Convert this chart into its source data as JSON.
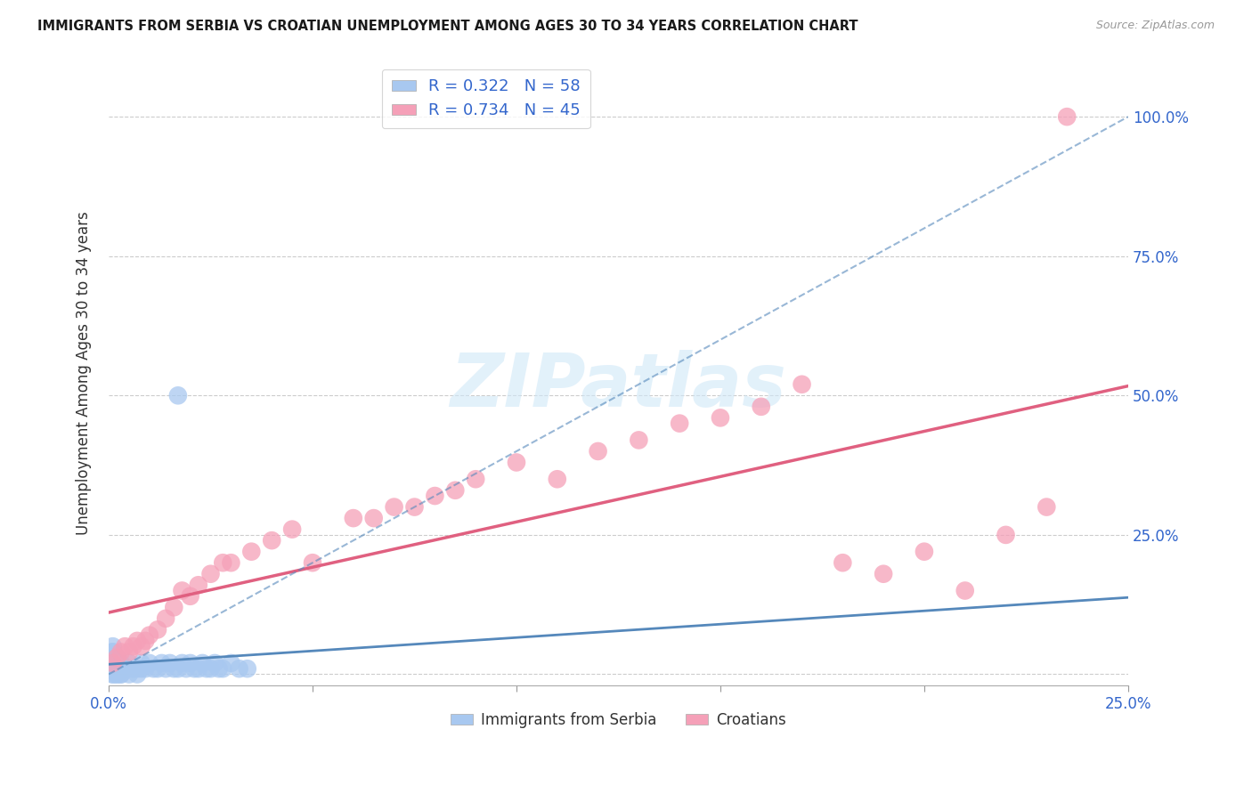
{
  "title": "IMMIGRANTS FROM SERBIA VS CROATIAN UNEMPLOYMENT AMONG AGES 30 TO 34 YEARS CORRELATION CHART",
  "source": "Source: ZipAtlas.com",
  "ylabel": "Unemployment Among Ages 30 to 34 years",
  "xlim": [
    0.0,
    0.25
  ],
  "ylim": [
    -0.02,
    1.1
  ],
  "xticks": [
    0.0,
    0.05,
    0.1,
    0.15,
    0.2,
    0.25
  ],
  "xtick_labels": [
    "0.0%",
    "",
    "",
    "",
    "",
    "25.0%"
  ],
  "yticks": [
    0.0,
    0.25,
    0.5,
    0.75,
    1.0
  ],
  "ytick_labels_right": [
    "",
    "25.0%",
    "50.0%",
    "75.0%",
    "100.0%"
  ],
  "series1_name": "Immigrants from Serbia",
  "series1_R": 0.322,
  "series1_N": 58,
  "series1_color": "#a8c8f0",
  "series1_line_color": "#5588bb",
  "series2_name": "Croatians",
  "series2_R": 0.734,
  "series2_N": 45,
  "series2_color": "#f5a0b8",
  "series2_line_color": "#e06080",
  "watermark": "ZIPatlas",
  "background_color": "#ffffff",
  "grid_color": "#cccccc",
  "serbia_x": [
    0.001,
    0.002,
    0.003,
    0.004,
    0.005,
    0.006,
    0.007,
    0.008,
    0.009,
    0.01,
    0.011,
    0.012,
    0.013,
    0.014,
    0.015,
    0.016,
    0.017,
    0.018,
    0.019,
    0.02,
    0.021,
    0.022,
    0.023,
    0.024,
    0.025,
    0.026,
    0.027,
    0.028,
    0.03,
    0.032,
    0.034,
    0.002,
    0.003,
    0.004,
    0.005,
    0.006,
    0.007,
    0.008,
    0.001,
    0.002,
    0.003,
    0.001,
    0.002,
    0.003,
    0.004,
    0.001,
    0.002,
    0.001,
    0.002,
    0.003,
    0.001,
    0.001,
    0.002,
    0.001,
    0.001,
    0.002,
    0.001,
    0.017
  ],
  "serbia_y": [
    0.01,
    0.01,
    0.02,
    0.01,
    0.02,
    0.01,
    0.01,
    0.02,
    0.01,
    0.02,
    0.01,
    0.01,
    0.02,
    0.01,
    0.02,
    0.01,
    0.01,
    0.02,
    0.01,
    0.02,
    0.01,
    0.01,
    0.02,
    0.01,
    0.01,
    0.02,
    0.01,
    0.01,
    0.02,
    0.01,
    0.01,
    0.0,
    0.0,
    0.01,
    0.0,
    0.01,
    0.0,
    0.01,
    0.0,
    0.0,
    0.01,
    0.02,
    0.01,
    0.0,
    0.01,
    0.03,
    0.02,
    0.04,
    0.03,
    0.02,
    0.05,
    0.04,
    0.03,
    0.02,
    0.0,
    0.01,
    0.03,
    0.5
  ],
  "croatia_x": [
    0.001,
    0.002,
    0.003,
    0.004,
    0.005,
    0.006,
    0.007,
    0.008,
    0.009,
    0.01,
    0.012,
    0.014,
    0.016,
    0.018,
    0.02,
    0.022,
    0.025,
    0.028,
    0.03,
    0.035,
    0.04,
    0.045,
    0.05,
    0.06,
    0.065,
    0.07,
    0.075,
    0.08,
    0.085,
    0.09,
    0.1,
    0.11,
    0.12,
    0.13,
    0.14,
    0.15,
    0.16,
    0.17,
    0.18,
    0.19,
    0.2,
    0.21,
    0.22,
    0.23,
    0.235
  ],
  "croatia_y": [
    0.02,
    0.03,
    0.04,
    0.05,
    0.04,
    0.05,
    0.06,
    0.05,
    0.06,
    0.07,
    0.08,
    0.1,
    0.12,
    0.15,
    0.14,
    0.16,
    0.18,
    0.2,
    0.2,
    0.22,
    0.24,
    0.26,
    0.2,
    0.28,
    0.28,
    0.3,
    0.3,
    0.32,
    0.33,
    0.35,
    0.38,
    0.35,
    0.4,
    0.42,
    0.45,
    0.46,
    0.48,
    0.52,
    0.2,
    0.18,
    0.22,
    0.15,
    0.25,
    0.3,
    1.0
  ]
}
